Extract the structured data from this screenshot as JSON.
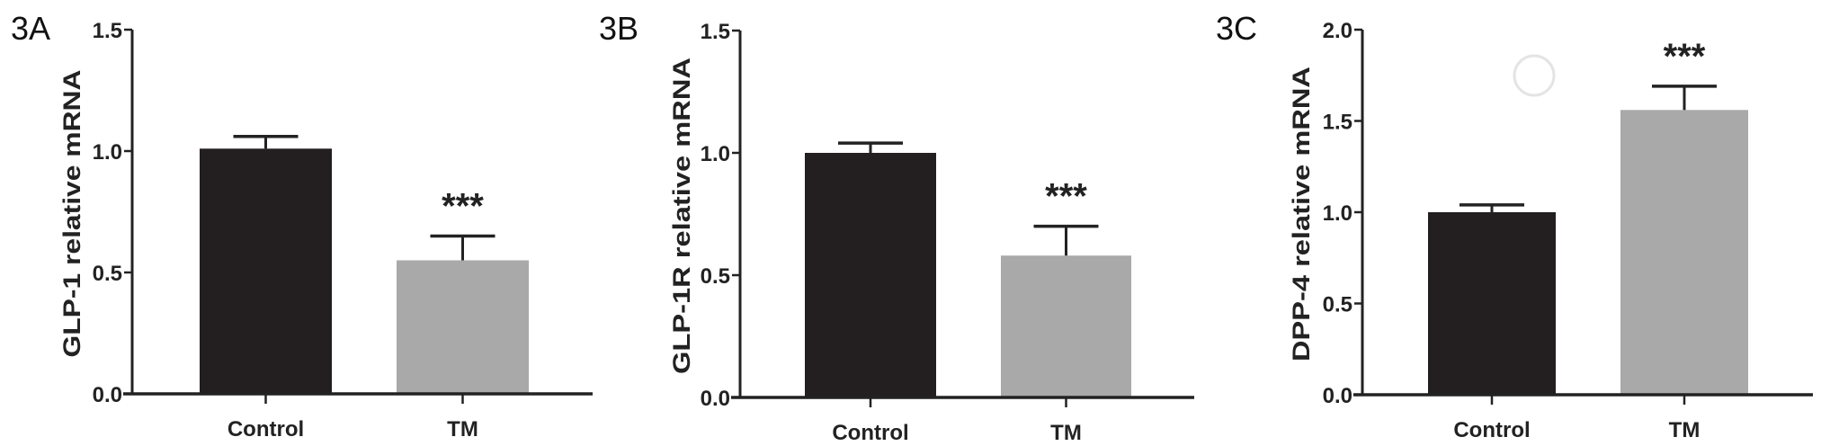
{
  "chart_data": [
    {
      "type": "bar",
      "panel_label": "3A",
      "ylabel": "GLP-1 relative mRNA",
      "categories": [
        "Control",
        "TM"
      ],
      "values": [
        1.01,
        0.55
      ],
      "errors": [
        0.05,
        0.1
      ],
      "significance": [
        "",
        "***"
      ],
      "ylim": [
        0,
        1.5
      ],
      "yticks": [
        "0.0",
        "0.5",
        "1.0",
        "1.5"
      ],
      "colors": [
        "#231f20",
        "#a9a9a9"
      ],
      "grid": false
    },
    {
      "type": "bar",
      "panel_label": "3B",
      "ylabel": "GLP-1R relative mRNA",
      "categories": [
        "Control",
        "TM"
      ],
      "values": [
        1.0,
        0.58
      ],
      "errors": [
        0.04,
        0.12
      ],
      "significance": [
        "",
        "***"
      ],
      "ylim": [
        0,
        1.5
      ],
      "yticks": [
        "0.0",
        "0.5",
        "1.0",
        "1.5"
      ],
      "colors": [
        "#231f20",
        "#a9a9a9"
      ],
      "grid": false
    },
    {
      "type": "bar",
      "panel_label": "3C",
      "ylabel": "DPP-4 relative mRNA",
      "categories": [
        "Control",
        "TM"
      ],
      "values": [
        1.0,
        1.56
      ],
      "errors": [
        0.04,
        0.13
      ],
      "significance": [
        "",
        "***"
      ],
      "ylim": [
        0,
        2.0
      ],
      "yticks": [
        "0.0",
        "0.5",
        "1.0",
        "1.5",
        "2.0"
      ],
      "colors": [
        "#231f20",
        "#a9a9a9"
      ],
      "grid": false
    }
  ]
}
